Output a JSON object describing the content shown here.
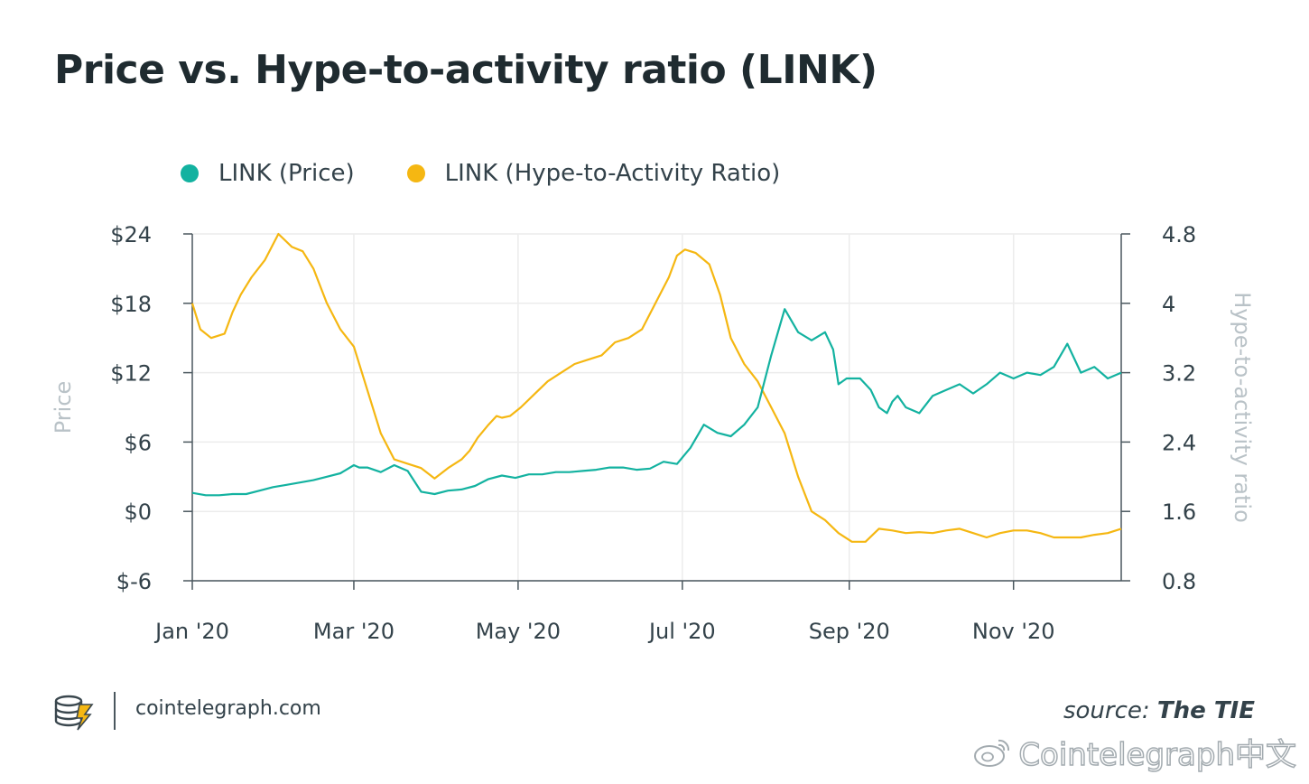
{
  "title": "Price vs. Hype-to-activity ratio (LINK)",
  "legend": {
    "price_label": "LINK (Price)",
    "ratio_label": "LINK (Hype-to-Activity Ratio)"
  },
  "colors": {
    "price": "#13b2a0",
    "ratio": "#f5b712",
    "grid": "#ececec",
    "axis": "#4a575e"
  },
  "footer": {
    "site": "cointelegraph.com",
    "source_prefix": "source: ",
    "source_name": "The TIE",
    "watermark": "Cointelegraph中文"
  },
  "chart_data": {
    "type": "line",
    "title": "Price vs. Hype-to-activity ratio (LINK)",
    "xlabel": "",
    "ylabel_left": "Price",
    "ylabel_right": "Hype-to-activity ratio",
    "x_ticks": [
      "Jan '20",
      "Mar '20",
      "May '20",
      "Jul '20",
      "Sep '20",
      "Nov '20"
    ],
    "x_tick_values": [
      0,
      60,
      121,
      182,
      244,
      305
    ],
    "x_range": [
      0,
      345
    ],
    "ylim_left": [
      -6,
      24
    ],
    "ylim_right": [
      0.8,
      4.8
    ],
    "y_left_ticks": [
      "$24",
      "$18",
      "$12",
      "$6",
      "$0",
      "$-6"
    ],
    "y_left_tick_values": [
      24,
      18,
      12,
      6,
      0,
      -6
    ],
    "y_right_ticks": [
      "4.8",
      "4",
      "3.2",
      "2.4",
      "1.6",
      "0.8"
    ],
    "y_right_tick_values": [
      4.8,
      4.0,
      3.2,
      2.4,
      1.6,
      0.8
    ],
    "series": [
      {
        "name": "LINK (Price)",
        "axis": "left",
        "x": [
          0,
          5,
          10,
          15,
          20,
          25,
          30,
          35,
          40,
          45,
          50,
          55,
          60,
          62,
          65,
          70,
          75,
          80,
          85,
          90,
          95,
          100,
          105,
          110,
          115,
          120,
          125,
          130,
          135,
          140,
          145,
          150,
          155,
          160,
          165,
          170,
          175,
          180,
          185,
          190,
          195,
          200,
          205,
          210,
          215,
          220,
          225,
          230,
          235,
          238,
          240,
          243,
          245,
          248,
          250,
          252,
          255,
          258,
          260,
          262,
          265,
          270,
          275,
          280,
          285,
          290,
          295,
          300,
          305,
          310,
          315,
          320,
          325,
          330,
          335,
          340,
          345
        ],
        "values": [
          1.6,
          1.4,
          1.4,
          1.5,
          1.5,
          1.8,
          2.1,
          2.3,
          2.5,
          2.7,
          3.0,
          3.3,
          4.0,
          3.8,
          3.8,
          3.4,
          4.0,
          3.5,
          1.7,
          1.5,
          1.8,
          1.9,
          2.2,
          2.8,
          3.1,
          2.9,
          3.2,
          3.2,
          3.4,
          3.4,
          3.5,
          3.6,
          3.8,
          3.8,
          3.6,
          3.7,
          4.3,
          4.1,
          5.5,
          7.5,
          6.8,
          6.5,
          7.5,
          9.0,
          13.5,
          17.5,
          15.5,
          14.8,
          15.5,
          14.0,
          11.0,
          11.5,
          11.5,
          11.5,
          11.0,
          10.5,
          9.0,
          8.5,
          9.5,
          10.0,
          9.0,
          8.5,
          10.0,
          10.5,
          11.0,
          10.2,
          11.0,
          12.0,
          11.5,
          12.0,
          11.8,
          12.5,
          14.5,
          12.0,
          12.5,
          11.5,
          12.0
        ]
      },
      {
        "name": "LINK (Hype-to-Activity Ratio)",
        "axis": "right",
        "x": [
          0,
          3,
          7,
          12,
          15,
          18,
          22,
          27,
          32,
          37,
          41,
          45,
          50,
          55,
          60,
          65,
          70,
          75,
          80,
          85,
          90,
          95,
          100,
          103,
          106,
          110,
          113,
          115,
          118,
          122,
          127,
          132,
          137,
          142,
          147,
          152,
          157,
          162,
          167,
          172,
          177,
          180,
          183,
          187,
          192,
          196,
          200,
          205,
          210,
          215,
          220,
          225,
          230,
          235,
          240,
          245,
          250,
          255,
          260,
          265,
          270,
          275,
          280,
          285,
          290,
          295,
          300,
          305,
          310,
          315,
          320,
          325,
          330,
          335,
          340,
          345
        ],
        "values": [
          4.0,
          3.7,
          3.6,
          3.65,
          3.9,
          4.1,
          4.3,
          4.5,
          4.8,
          4.65,
          4.6,
          4.4,
          4.0,
          3.7,
          3.5,
          3.0,
          2.5,
          2.2,
          2.15,
          2.1,
          1.98,
          2.1,
          2.2,
          2.3,
          2.45,
          2.6,
          2.7,
          2.68,
          2.7,
          2.8,
          2.95,
          3.1,
          3.2,
          3.3,
          3.35,
          3.4,
          3.55,
          3.6,
          3.7,
          4.0,
          4.3,
          4.55,
          4.62,
          4.58,
          4.45,
          4.1,
          3.6,
          3.3,
          3.1,
          2.8,
          2.5,
          2.0,
          1.6,
          1.5,
          1.35,
          1.25,
          1.25,
          1.4,
          1.38,
          1.35,
          1.36,
          1.35,
          1.38,
          1.4,
          1.35,
          1.3,
          1.35,
          1.38,
          1.38,
          1.35,
          1.3,
          1.3,
          1.3,
          1.33,
          1.35,
          1.4
        ]
      }
    ]
  }
}
